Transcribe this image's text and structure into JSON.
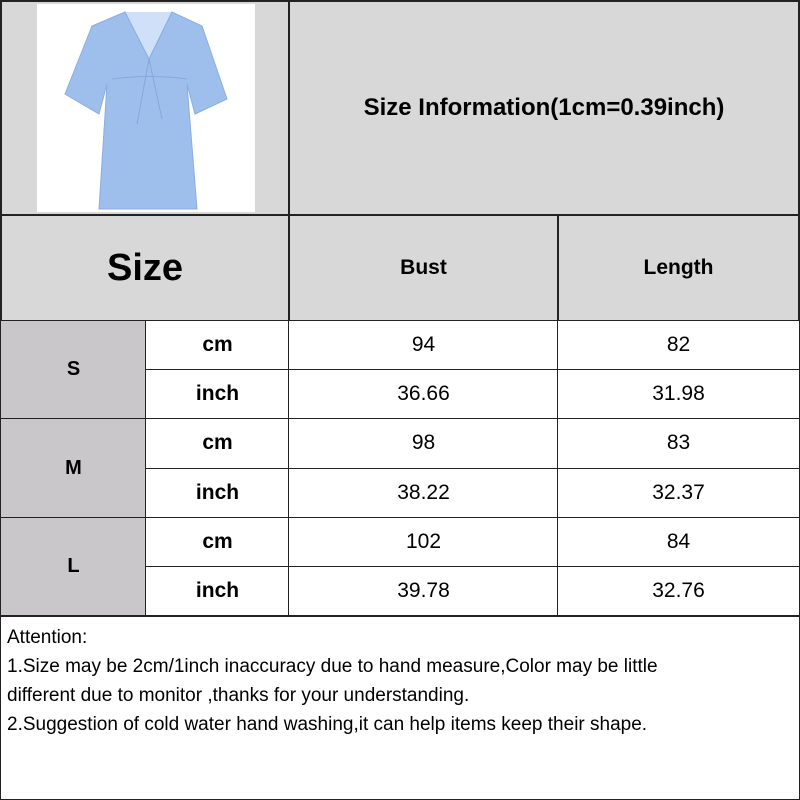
{
  "product_image": {
    "alt": "light blue v-neck ruffle sleeve dress",
    "color": "#9ebfec"
  },
  "title": "Size Information(1cm=0.39inch)",
  "table": {
    "header": {
      "size": "Size",
      "columns": [
        "Bust",
        "Length"
      ]
    },
    "rows": [
      {
        "size": "S",
        "units": [
          {
            "unit": "cm",
            "values": [
              "94",
              "82"
            ]
          },
          {
            "unit": "inch",
            "values": [
              "36.66",
              "31.98"
            ]
          }
        ]
      },
      {
        "size": "M",
        "units": [
          {
            "unit": "cm",
            "values": [
              "98",
              "83"
            ]
          },
          {
            "unit": "inch",
            "values": [
              "38.22",
              "32.37"
            ]
          }
        ]
      },
      {
        "size": "L",
        "units": [
          {
            "unit": "cm",
            "values": [
              "102",
              "84"
            ]
          },
          {
            "unit": "inch",
            "values": [
              "39.78",
              "32.76"
            ]
          }
        ]
      }
    ]
  },
  "notes": [
    "Attention:",
    "1.Size may be 2cm/1inch inaccuracy due to hand measure,Color may be little",
    "different due to monitor ,thanks for your understanding.",
    "2.Suggestion of cold water hand washing,it can help items keep their shape."
  ]
}
